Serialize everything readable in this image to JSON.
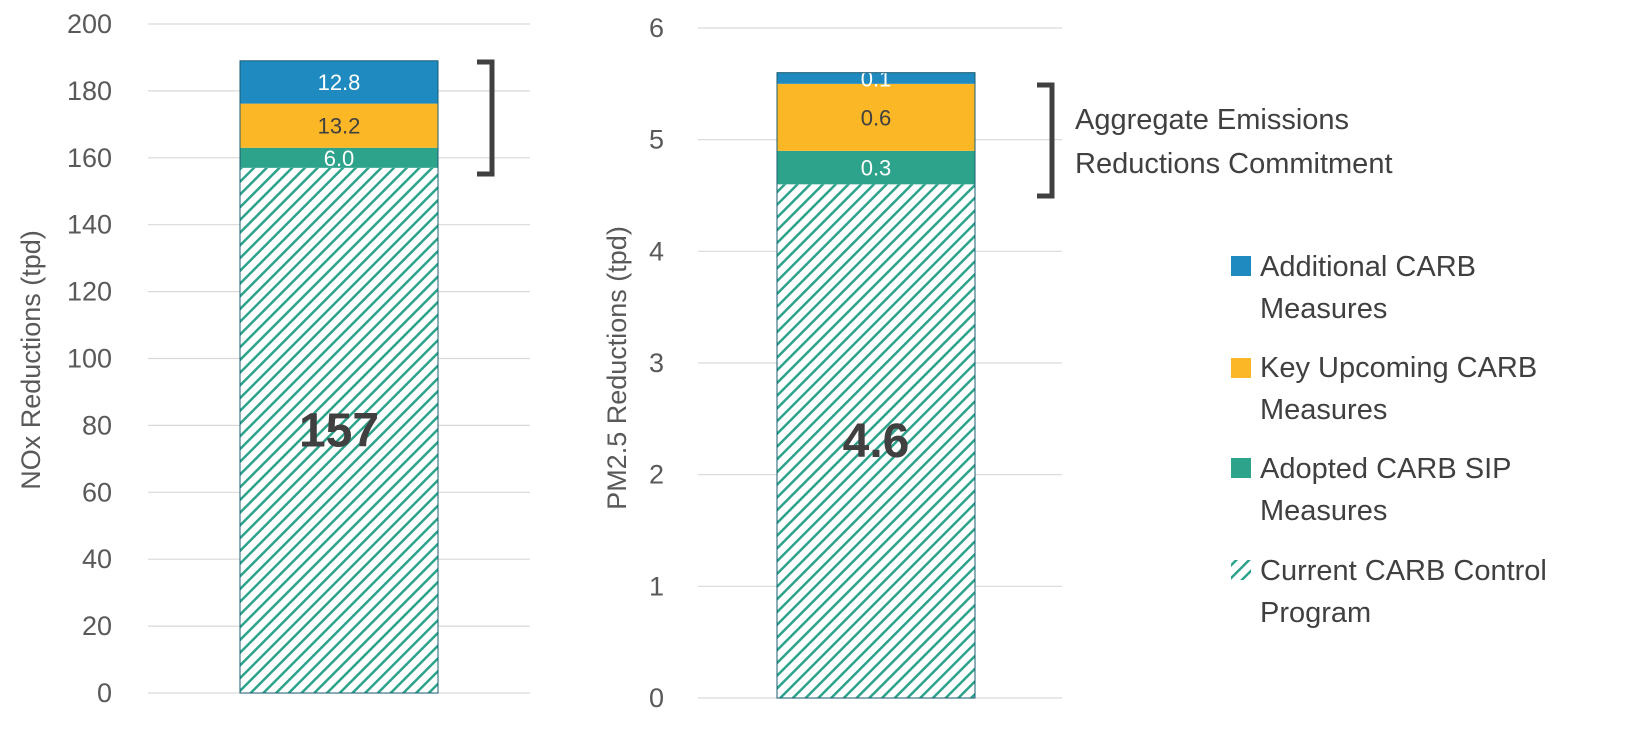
{
  "chart_data": [
    {
      "type": "bar",
      "stacked": true,
      "ylabel": "NOx Reductions (tpd)",
      "ylim": [
        0,
        200
      ],
      "yticks": [
        0,
        20,
        40,
        60,
        80,
        100,
        120,
        140,
        160,
        180,
        200
      ],
      "grid": true,
      "categories": [
        ""
      ],
      "series": [
        {
          "name": "Current CARB Control Program",
          "values": [
            157
          ],
          "label": "157"
        },
        {
          "name": "Adopted CARB SIP Measures",
          "values": [
            6.0
          ],
          "label": "6.0"
        },
        {
          "name": "Key Upcoming CARB Measures",
          "values": [
            13.2
          ],
          "label": "13.2"
        },
        {
          "name": "Additional CARB Measures",
          "values": [
            12.8
          ],
          "label": "12.8"
        }
      ]
    },
    {
      "type": "bar",
      "stacked": true,
      "ylabel": "PM2.5 Reductions (tpd)",
      "ylim": [
        0,
        6
      ],
      "yticks": [
        0,
        1,
        2,
        3,
        4,
        5,
        6
      ],
      "grid": true,
      "categories": [
        ""
      ],
      "series": [
        {
          "name": "Current CARB Control Program",
          "values": [
            4.6
          ],
          "label": "4.6"
        },
        {
          "name": "Adopted CARB SIP Measures",
          "values": [
            0.3
          ],
          "label": "0.3"
        },
        {
          "name": "Key Upcoming CARB Measures",
          "values": [
            0.6
          ],
          "label": "0.6"
        },
        {
          "name": "Additional CARB Measures",
          "values": [
            0.1
          ],
          "label": "0.1"
        }
      ]
    }
  ],
  "annotation": {
    "line1": "Aggregate Emissions",
    "line2": "Reductions Commitment"
  },
  "legend": {
    "position": "right",
    "items": [
      {
        "line1": "Additional CARB",
        "line2": "Measures",
        "color": "#1f8ac0",
        "pattern": "solid"
      },
      {
        "line1": "Key Upcoming CARB",
        "line2": "Measures",
        "color": "#fbb726",
        "pattern": "solid"
      },
      {
        "line1": "Adopted CARB SIP",
        "line2": "Measures",
        "color": "#2ea38b",
        "pattern": "solid"
      },
      {
        "line1": "Current CARB Control",
        "line2": "Program",
        "color": "#2ea38b",
        "pattern": "diagonal-hatch"
      }
    ]
  },
  "colors": {
    "additional": "#1f8ac0",
    "upcoming": "#fbb726",
    "adopted": "#2ea38b",
    "current": "#2ea38b",
    "grid": "#d9d9d9",
    "text": "#595959",
    "bracket": "#404040"
  }
}
